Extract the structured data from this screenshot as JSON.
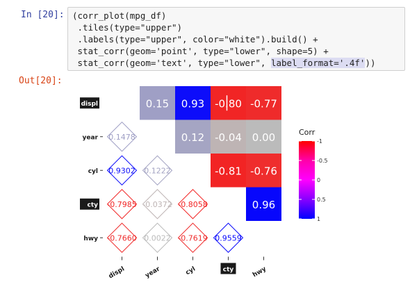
{
  "cell": {
    "in_prompt": "In [20]:",
    "out_prompt": "Out[20]:",
    "code_lines": [
      "(corr_plot(mpg_df)",
      " .tiles(type=\"upper\")",
      " .labels(type=\"upper\", color=\"white\").build() +",
      " stat_corr(geom='point', type=\"lower\", shape=5) +",
      " stat_corr(geom='text', type=\"lower\", "
    ],
    "code_highlight": "label_format='.4f'",
    "code_tail": "))"
  },
  "chart_data": {
    "type": "heatmap",
    "variables": [
      "displ",
      "year",
      "cyl",
      "cty",
      "hwy"
    ],
    "highlighted_labels": [
      "displ",
      "cty"
    ],
    "upper_tiles": [
      {
        "row": "displ",
        "col": "year",
        "value": 0.15,
        "label": "0.15"
      },
      {
        "row": "displ",
        "col": "cyl",
        "value": 0.93,
        "label": "0.93"
      },
      {
        "row": "displ",
        "col": "cty",
        "value": -0.8,
        "label": "-0.80"
      },
      {
        "row": "displ",
        "col": "hwy",
        "value": -0.77,
        "label": "-0.77"
      },
      {
        "row": "year",
        "col": "cyl",
        "value": 0.12,
        "label": "0.12"
      },
      {
        "row": "year",
        "col": "cty",
        "value": -0.04,
        "label": "-0.04"
      },
      {
        "row": "year",
        "col": "hwy",
        "value": 0.0,
        "label": "0.00"
      },
      {
        "row": "cyl",
        "col": "cty",
        "value": -0.81,
        "label": "-0.81"
      },
      {
        "row": "cyl",
        "col": "hwy",
        "value": -0.76,
        "label": "-0.76"
      },
      {
        "row": "cty",
        "col": "hwy",
        "value": 0.96,
        "label": "0.96"
      }
    ],
    "lower_points": [
      {
        "row": "year",
        "col": "displ",
        "value": 0.1478,
        "label": "0.1478"
      },
      {
        "row": "cyl",
        "col": "displ",
        "value": 0.9302,
        "label": "0.9302"
      },
      {
        "row": "cyl",
        "col": "year",
        "value": 0.1222,
        "label": "0.1222"
      },
      {
        "row": "cty",
        "col": "displ",
        "value": -0.7985,
        "label": "-0.7985"
      },
      {
        "row": "cty",
        "col": "year",
        "value": -0.0372,
        "label": "-0.0372"
      },
      {
        "row": "cty",
        "col": "cyl",
        "value": -0.8058,
        "label": "-0.8058"
      },
      {
        "row": "hwy",
        "col": "displ",
        "value": -0.766,
        "label": "-0.7660"
      },
      {
        "row": "hwy",
        "col": "year",
        "value": 0.0022,
        "label": "0.0022"
      },
      {
        "row": "hwy",
        "col": "cyl",
        "value": -0.7619,
        "label": "-0.7619"
      },
      {
        "row": "hwy",
        "col": "cty",
        "value": 0.9559,
        "label": "0.9559"
      }
    ],
    "legend": {
      "title": "Corr",
      "ticks": [
        "-1",
        "-0.5",
        "0",
        "0.5",
        "1"
      ],
      "tick_values": [
        -1,
        -0.5,
        0,
        0.5,
        1
      ],
      "placement": "right"
    },
    "colors": {
      "negative": "#FF0000",
      "zero": "#BBBBBB",
      "positive": "#0000FF",
      "label_text": "#FFFFFF"
    }
  }
}
